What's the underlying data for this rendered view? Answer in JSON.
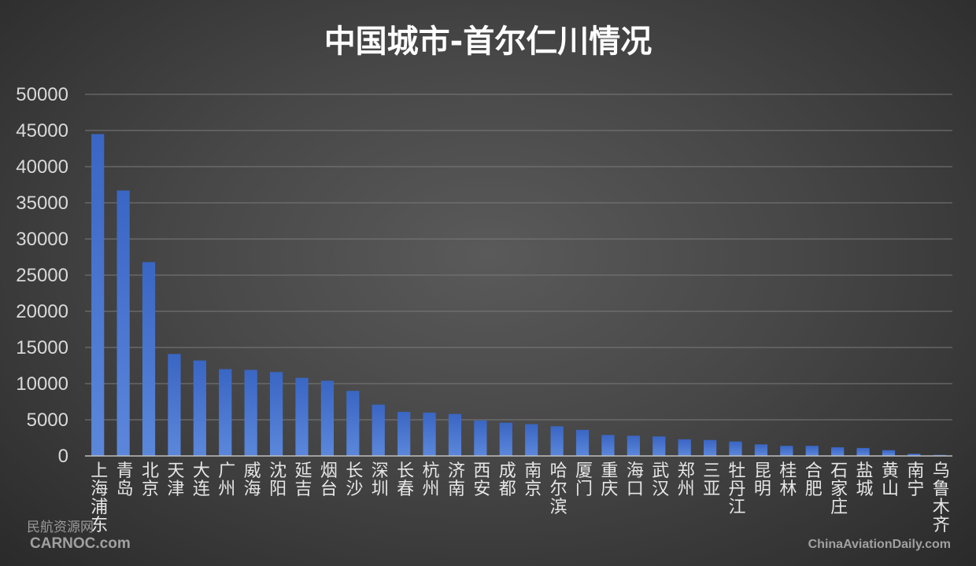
{
  "chart_data": {
    "type": "bar",
    "title": "中国城市-首尔仁川情况",
    "xlabel": "",
    "ylabel": "",
    "ylim": [
      0,
      50000
    ],
    "yticks": [
      0,
      5000,
      10000,
      15000,
      20000,
      25000,
      30000,
      35000,
      40000,
      45000,
      50000
    ],
    "grid": true,
    "bar_color": "#4472c4",
    "categories": [
      "上海浦东",
      "青岛",
      "北京",
      "天津",
      "大连",
      "广州",
      "威海",
      "沈阳",
      "延吉",
      "烟台",
      "长沙",
      "深圳",
      "长春",
      "杭州",
      "济南",
      "西安",
      "成都",
      "南京",
      "哈尔滨",
      "厦门",
      "重庆",
      "海口",
      "武汉",
      "郑州",
      "三亚",
      "牡丹江",
      "昆明",
      "桂林",
      "合肥",
      "石家庄",
      "盐城",
      "黄山",
      "南宁",
      "乌鲁木齐"
    ],
    "values": [
      44500,
      36700,
      26800,
      14100,
      13200,
      12000,
      11900,
      11600,
      10800,
      10400,
      9000,
      7100,
      6100,
      6000,
      5800,
      4900,
      4600,
      4400,
      4100,
      3600,
      2900,
      2800,
      2700,
      2300,
      2200,
      2000,
      1600,
      1400,
      1400,
      1200,
      1100,
      800,
      300,
      150
    ]
  },
  "watermarks": {
    "left_cn": "民航资源网",
    "left_en": "CARNOC.com",
    "right_en": "ChinaAviationDaily.com"
  }
}
